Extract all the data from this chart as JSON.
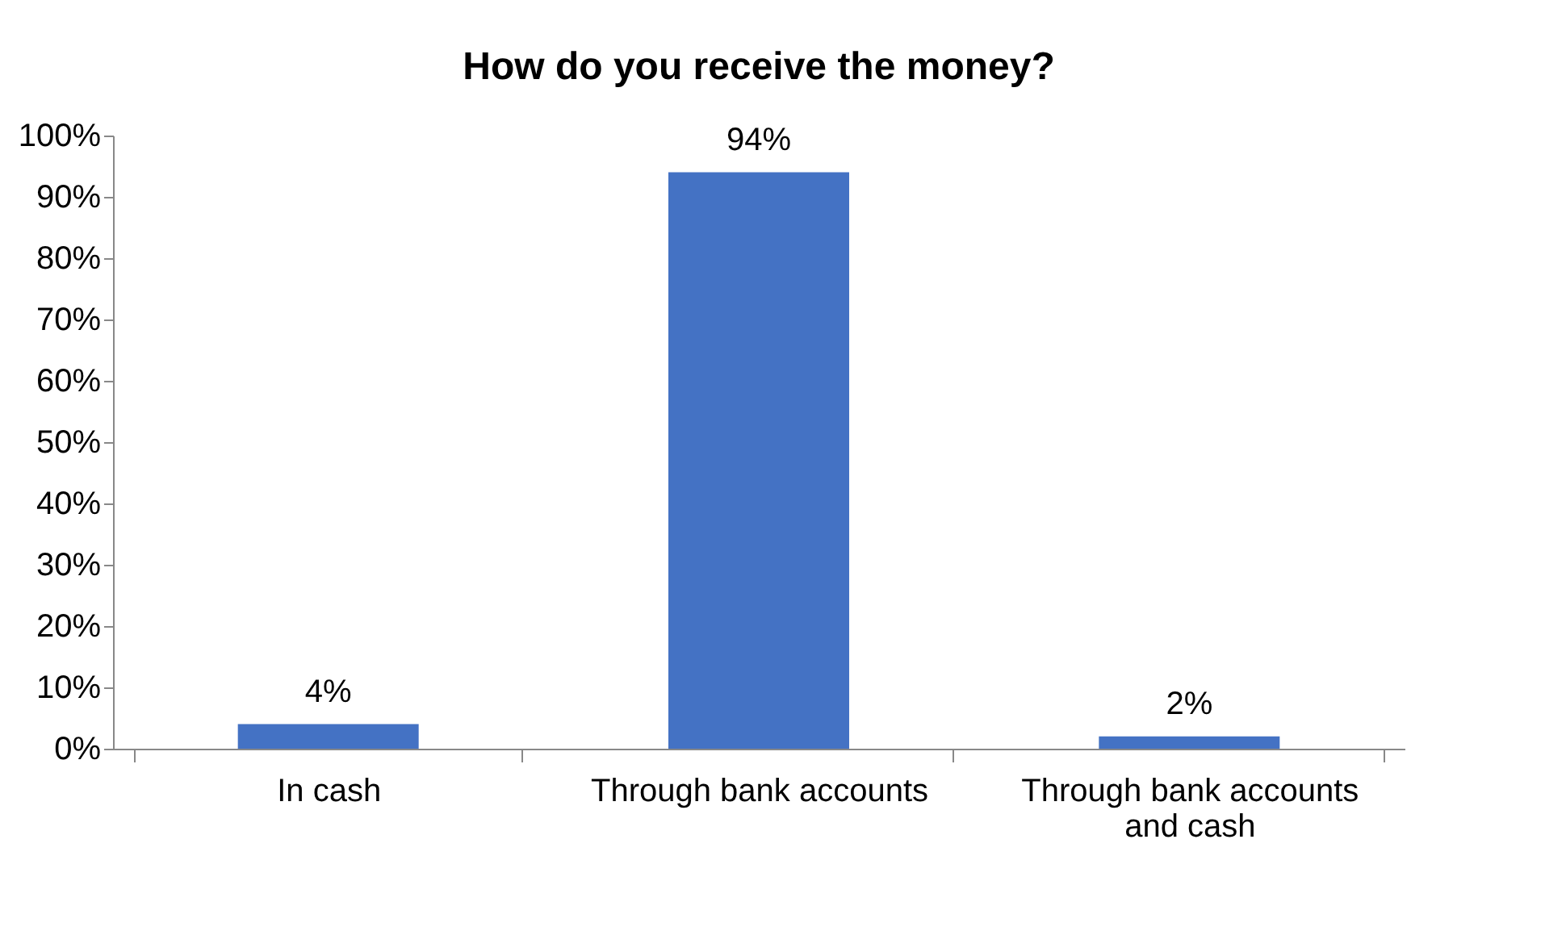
{
  "chart_data": {
    "type": "bar",
    "title": "How do you receive the money?",
    "categories": [
      "In cash",
      "Through bank accounts",
      "Through bank accounts and cash"
    ],
    "values": [
      4,
      94,
      2
    ],
    "value_labels": [
      "4%",
      "94%",
      "2%"
    ],
    "color": "#4472c4",
    "ylim": [
      0,
      100
    ],
    "yticks": [
      {
        "value": 0,
        "label": "0%"
      },
      {
        "value": 10,
        "label": "10%"
      },
      {
        "value": 20,
        "label": "20%"
      },
      {
        "value": 30,
        "label": "30%"
      },
      {
        "value": 40,
        "label": "40%"
      },
      {
        "value": 50,
        "label": "50%"
      },
      {
        "value": 60,
        "label": "60%"
      },
      {
        "value": 70,
        "label": "70%"
      },
      {
        "value": 80,
        "label": "80%"
      },
      {
        "value": 90,
        "label": "90%"
      },
      {
        "value": 100,
        "label": "100%"
      }
    ],
    "grid": false
  }
}
